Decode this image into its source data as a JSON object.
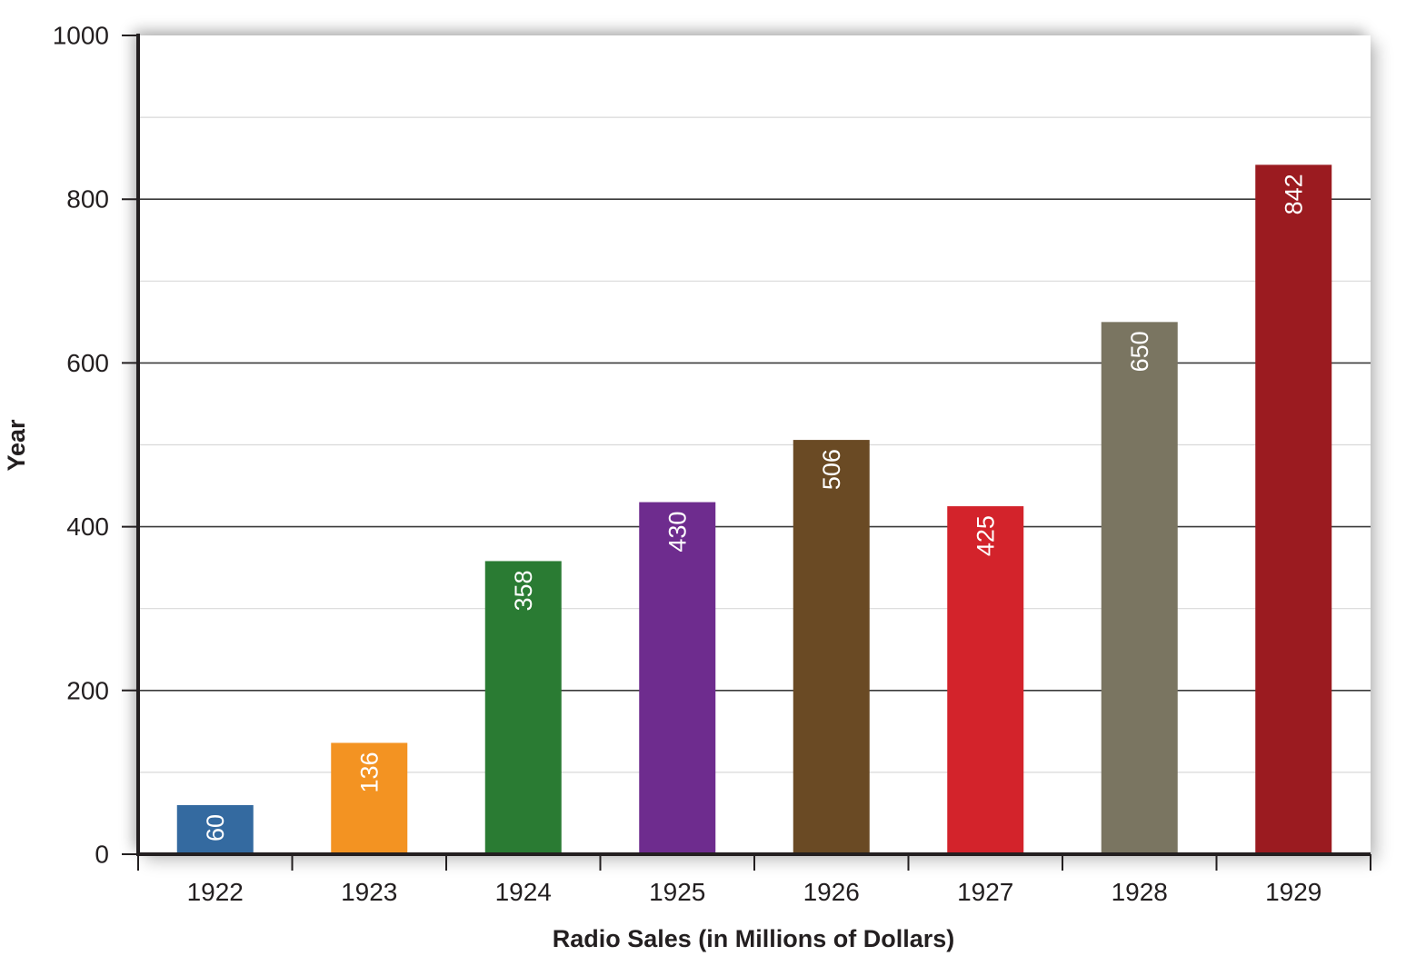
{
  "chart_data": {
    "type": "bar",
    "title": "",
    "xlabel": "Radio Sales (in Millions of Dollars)",
    "ylabel": "Year",
    "categories": [
      "1922",
      "1923",
      "1924",
      "1925",
      "1926",
      "1927",
      "1928",
      "1929"
    ],
    "values": [
      60,
      136,
      358,
      430,
      506,
      425,
      650,
      842
    ],
    "bar_colors": [
      "#346aa0",
      "#f39322",
      "#2a7b33",
      "#6e2c8e",
      "#6a4a24",
      "#d3232b",
      "#7a7561",
      "#9b1b20"
    ],
    "data_labels": [
      "60",
      "136",
      "358",
      "430",
      "506",
      "425",
      "650",
      "842"
    ],
    "ylim": [
      0,
      1000
    ],
    "yticks": [
      0,
      200,
      400,
      600,
      800,
      1000
    ],
    "minor_gridlines": [
      100,
      300,
      500,
      700,
      900
    ],
    "grid": true,
    "legend": null
  },
  "axes": {
    "x_title": "Radio Sales (in Millions of Dollars)",
    "y_title": "Year",
    "y_tick_labels": [
      "0",
      "200",
      "400",
      "600",
      "800",
      "1000"
    ]
  },
  "colors": {
    "axis": "#231f20",
    "major_grid": "#3a3a3a",
    "minor_grid": "#d9d9d9"
  }
}
